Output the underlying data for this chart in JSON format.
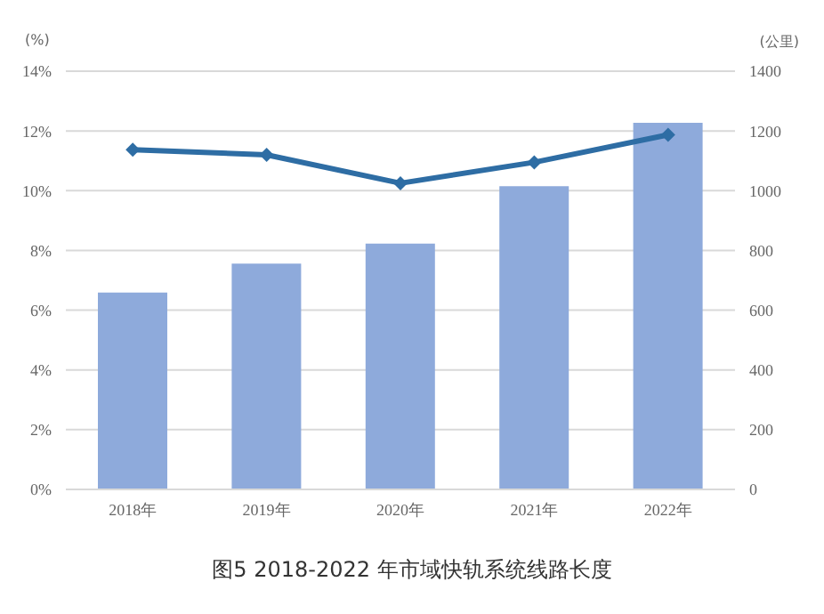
{
  "chart_data": {
    "type": "bar",
    "title": "图5  2018-2022 年市域快轨系统线路长度",
    "categories": [
      "2018年",
      "2019年",
      "2020年",
      "2021年",
      "2022年"
    ],
    "series": [
      {
        "axis": "y2",
        "color": "#8eaadb",
        "values": [
          659,
          756,
          823,
          1015,
          1227
        ]
      },
      {
        "type": "line",
        "color": "#2e6da4",
        "marker": "diamond",
        "values": [
          11.37,
          11.2,
          10.25,
          10.95,
          11.87
        ]
      }
    ],
    "ylabel": "(%)",
    "y2label": "(公里)",
    "ylim": [
      0,
      14
    ],
    "yticks": [
      {
        "value": 0,
        "label": "0%"
      },
      {
        "value": 2,
        "label": "2%"
      },
      {
        "value": 4,
        "label": "4%"
      },
      {
        "value": 6,
        "label": "6%"
      },
      {
        "value": 8,
        "label": "8%"
      },
      {
        "value": 10,
        "label": "10%"
      },
      {
        "value": 12,
        "label": "12%"
      },
      {
        "value": 14,
        "label": "14%"
      }
    ],
    "y2lim": [
      0,
      1400
    ],
    "y2ticks": [
      0,
      200,
      400,
      600,
      800,
      1000,
      1200,
      1400
    ],
    "grid": "y",
    "legend": false
  }
}
